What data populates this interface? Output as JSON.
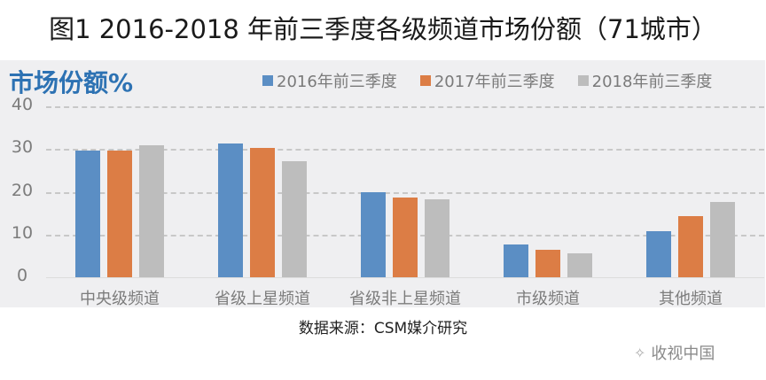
{
  "figure": {
    "title": "图1 2016-2018 年前三季度各级频道市场份额（71城市）",
    "source": "数据来源：CSM媒介研究",
    "watermark": "收视中国"
  },
  "chart_data": {
    "type": "bar",
    "title": "图1 2016-2018 年前三季度各级频道市场份额（71城市）",
    "ylabel": "市场份额%",
    "xlabel": "",
    "ylim": [
      0,
      40
    ],
    "yticks": [
      0,
      10,
      20,
      30,
      40
    ],
    "grid": true,
    "legend_position": "top-right",
    "categories": [
      "中央级频道",
      "省级上星频道",
      "省级非上星频道",
      "市级频道",
      "其他频道"
    ],
    "series": [
      {
        "name": "2016年前三季度",
        "color": "#5b8ec4",
        "values": [
          29.6,
          31.2,
          19.8,
          7.6,
          10.8
        ]
      },
      {
        "name": "2017年前三季度",
        "color": "#dc7d45",
        "values": [
          29.7,
          30.2,
          18.6,
          6.5,
          14.4
        ]
      },
      {
        "name": "2018年前三季度",
        "color": "#bdbdbd",
        "values": [
          30.8,
          27.1,
          18.3,
          5.5,
          17.7
        ]
      }
    ]
  }
}
